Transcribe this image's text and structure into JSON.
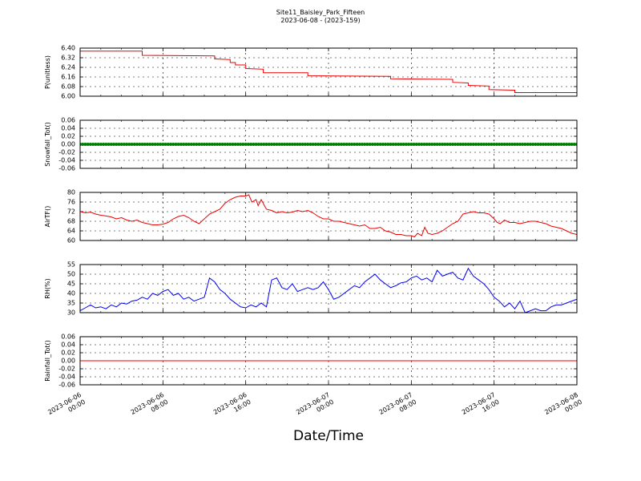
{
  "title": "Site11_Baisley_Park_Fifteen",
  "subtitle": "2023-06-08 - (2023-159)",
  "xlabel": "Date/Time",
  "colors": {
    "red": "#ee0000",
    "green": "#008000",
    "blue": "#0000ee",
    "grid": "#000000"
  },
  "chart_data": [
    {
      "type": "line",
      "ylabel": "P(unitless)",
      "ylim": [
        6.0,
        6.4
      ],
      "yticks": [
        "6.00",
        "6.08",
        "6.16",
        "6.24",
        "6.32",
        "6.40"
      ],
      "xticks": [
        "2023-06-06 00:00",
        "2023-06-06 08:00",
        "2023-06-06 16:00",
        "2023-06-07 00:00",
        "2023-06-07 08:00",
        "2023-06-07 16:00",
        "2023-06-08 00:00"
      ],
      "grid": true,
      "series": [
        {
          "color": "#ee0000",
          "points": [
            [
              0,
              6.375
            ],
            [
              6,
              6.375
            ],
            [
              6,
              6.34
            ],
            [
              13,
              6.335
            ],
            [
              13,
              6.31
            ],
            [
              14.5,
              6.305
            ],
            [
              14.5,
              6.28
            ],
            [
              15,
              6.28
            ],
            [
              15,
              6.26
            ],
            [
              16,
              6.26
            ],
            [
              16,
              6.23
            ],
            [
              17.7,
              6.225
            ],
            [
              17.7,
              6.195
            ],
            [
              22,
              6.195
            ],
            [
              22,
              6.17
            ],
            [
              30,
              6.165
            ],
            [
              30,
              6.145
            ],
            [
              36,
              6.14
            ],
            [
              36,
              6.115
            ],
            [
              37.5,
              6.11
            ],
            [
              37.5,
              6.09
            ],
            [
              39.5,
              6.085
            ],
            [
              39.5,
              6.055
            ],
            [
              42,
              6.05
            ],
            [
              42,
              6.03
            ],
            [
              48,
              6.03
            ]
          ]
        }
      ]
    },
    {
      "type": "scatter",
      "ylabel": "Snowfall_Tot()",
      "ylim": [
        -0.06,
        0.06
      ],
      "yticks": [
        "-0.06",
        "-0.04",
        "-0.02",
        "0.00",
        "0.02",
        "0.04",
        "0.06"
      ],
      "grid": true,
      "series": [
        {
          "color": "#008000",
          "constant": 0.0,
          "x_range": [
            0,
            48
          ],
          "interval_min": 15
        }
      ]
    },
    {
      "type": "line",
      "ylabel": "AirTF()",
      "ylim": [
        60,
        80
      ],
      "yticks": [
        "60",
        "64",
        "68",
        "72",
        "76",
        "80"
      ],
      "grid": true,
      "series": [
        {
          "color": "#ee0000",
          "points": [
            [
              0,
              72
            ],
            [
              0.5,
              71.5
            ],
            [
              1,
              71.8
            ],
            [
              1.5,
              71
            ],
            [
              2,
              70.5
            ],
            [
              2.5,
              70.2
            ],
            [
              3,
              69.8
            ],
            [
              3.5,
              69
            ],
            [
              4,
              69.5
            ],
            [
              4.5,
              68.5
            ],
            [
              5,
              68
            ],
            [
              5.5,
              68.5
            ],
            [
              6,
              67.5
            ],
            [
              6.5,
              67
            ],
            [
              7,
              66.5
            ],
            [
              7.5,
              66.5
            ],
            [
              8,
              66.8
            ],
            [
              8.5,
              67.5
            ],
            [
              9,
              69
            ],
            [
              9.5,
              70
            ],
            [
              10,
              70.5
            ],
            [
              10.5,
              69.5
            ],
            [
              11,
              68
            ],
            [
              11.5,
              67
            ],
            [
              12,
              69
            ],
            [
              12.5,
              71
            ],
            [
              13,
              72
            ],
            [
              13.5,
              73
            ],
            [
              14,
              75.5
            ],
            [
              14.5,
              77
            ],
            [
              15,
              78
            ],
            [
              15.5,
              78.5
            ],
            [
              16,
              78.5
            ],
            [
              16.3,
              79
            ],
            [
              16.6,
              76
            ],
            [
              17,
              77
            ],
            [
              17.2,
              74.5
            ],
            [
              17.5,
              77
            ],
            [
              18,
              73
            ],
            [
              18.5,
              72.5
            ],
            [
              19,
              71.5
            ],
            [
              19.5,
              72
            ],
            [
              20,
              71.5
            ],
            [
              20.5,
              71.8
            ],
            [
              21,
              72.5
            ],
            [
              21.5,
              72
            ],
            [
              22,
              72.5
            ],
            [
              22.5,
              71.5
            ],
            [
              23,
              70
            ],
            [
              23.5,
              69
            ],
            [
              24,
              69
            ],
            [
              24.5,
              68
            ],
            [
              25,
              68
            ],
            [
              25.5,
              67.5
            ],
            [
              26,
              67
            ],
            [
              26.5,
              66.5
            ],
            [
              27,
              66
            ],
            [
              27.5,
              66.5
            ],
            [
              28,
              65
            ],
            [
              28.5,
              65
            ],
            [
              29,
              65.5
            ],
            [
              29.5,
              64
            ],
            [
              30,
              63.5
            ],
            [
              30.5,
              62.5
            ],
            [
              31,
              62.5
            ],
            [
              31.5,
              62
            ],
            [
              32,
              62
            ],
            [
              32.3,
              61.5
            ],
            [
              32.6,
              63
            ],
            [
              33,
              62
            ],
            [
              33.3,
              65.5
            ],
            [
              33.6,
              63
            ],
            [
              34,
              62.5
            ],
            [
              34.5,
              63
            ],
            [
              35,
              64
            ],
            [
              35.5,
              65.5
            ],
            [
              36,
              67
            ],
            [
              36.5,
              68
            ],
            [
              37,
              71
            ],
            [
              37.5,
              71.5
            ],
            [
              38,
              72
            ],
            [
              38.5,
              71.5
            ],
            [
              39,
              71.5
            ],
            [
              39.5,
              71
            ],
            [
              40,
              69
            ],
            [
              40.3,
              67.5
            ],
            [
              40.6,
              67
            ],
            [
              41,
              68.5
            ],
            [
              41.5,
              67.5
            ],
            [
              42,
              67.5
            ],
            [
              42.5,
              67
            ],
            [
              43,
              67.5
            ],
            [
              43.5,
              68
            ],
            [
              44,
              68
            ],
            [
              44.5,
              67.5
            ],
            [
              45,
              67
            ],
            [
              45.5,
              66
            ],
            [
              46,
              65.5
            ],
            [
              46.5,
              65
            ],
            [
              47,
              64
            ],
            [
              47.5,
              63
            ],
            [
              48,
              62.5
            ]
          ]
        }
      ]
    },
    {
      "type": "line",
      "ylabel": "RH(%)",
      "ylim": [
        30,
        55
      ],
      "yticks": [
        "30",
        "35",
        "40",
        "45",
        "50",
        "55"
      ],
      "grid": true,
      "series": [
        {
          "color": "#0000ee",
          "points": [
            [
              0,
              31
            ],
            [
              0.5,
              32.5
            ],
            [
              1,
              34
            ],
            [
              1.5,
              32.5
            ],
            [
              2,
              33
            ],
            [
              2.5,
              32
            ],
            [
              3,
              34
            ],
            [
              3.5,
              33
            ],
            [
              4,
              35
            ],
            [
              4.5,
              34.5
            ],
            [
              5,
              36
            ],
            [
              5.5,
              36.5
            ],
            [
              6,
              38
            ],
            [
              6.5,
              37
            ],
            [
              7,
              40
            ],
            [
              7.5,
              39
            ],
            [
              8,
              41
            ],
            [
              8.5,
              42
            ],
            [
              9,
              39
            ],
            [
              9.5,
              40
            ],
            [
              10,
              37
            ],
            [
              10.5,
              38
            ],
            [
              11,
              36
            ],
            [
              11.5,
              37
            ],
            [
              12,
              38
            ],
            [
              12.5,
              48
            ],
            [
              13,
              46
            ],
            [
              13.5,
              42
            ],
            [
              14,
              40
            ],
            [
              14.5,
              37
            ],
            [
              15,
              35
            ],
            [
              15.5,
              33
            ],
            [
              16,
              32.5
            ],
            [
              16.5,
              34
            ],
            [
              17,
              33
            ],
            [
              17.5,
              35
            ],
            [
              18,
              33
            ],
            [
              18.5,
              47
            ],
            [
              19,
              48
            ],
            [
              19.5,
              43
            ],
            [
              20,
              42
            ],
            [
              20.5,
              45
            ],
            [
              21,
              41
            ],
            [
              21.5,
              42
            ],
            [
              22,
              43
            ],
            [
              22.5,
              42
            ],
            [
              23,
              43
            ],
            [
              23.5,
              46
            ],
            [
              24,
              42
            ],
            [
              24.5,
              37
            ],
            [
              25,
              38
            ],
            [
              25.5,
              40
            ],
            [
              26,
              42
            ],
            [
              26.5,
              44
            ],
            [
              27,
              43
            ],
            [
              27.5,
              46
            ],
            [
              28,
              48
            ],
            [
              28.5,
              50
            ],
            [
              29,
              47
            ],
            [
              29.5,
              45
            ],
            [
              30,
              43
            ],
            [
              30.5,
              44
            ],
            [
              31,
              45.5
            ],
            [
              31.5,
              46
            ],
            [
              32,
              48
            ],
            [
              32.5,
              49
            ],
            [
              33,
              47
            ],
            [
              33.5,
              48
            ],
            [
              34,
              46
            ],
            [
              34.5,
              52
            ],
            [
              35,
              49
            ],
            [
              35.5,
              50
            ],
            [
              36,
              51
            ],
            [
              36.5,
              48
            ],
            [
              37,
              47
            ],
            [
              37.5,
              53
            ],
            [
              38,
              49
            ],
            [
              38.5,
              47
            ],
            [
              39,
              45
            ],
            [
              39.5,
              42
            ],
            [
              40,
              38
            ],
            [
              40.5,
              36
            ],
            [
              41,
              33
            ],
            [
              41.5,
              35
            ],
            [
              42,
              32
            ],
            [
              42.5,
              36
            ],
            [
              43,
              30
            ],
            [
              43.5,
              31
            ],
            [
              44,
              32
            ],
            [
              44.5,
              31
            ],
            [
              45,
              31
            ],
            [
              45.5,
              33
            ],
            [
              46,
              34
            ],
            [
              46.5,
              34
            ],
            [
              47,
              35
            ],
            [
              47.5,
              36
            ],
            [
              48,
              37
            ]
          ]
        }
      ]
    },
    {
      "type": "line",
      "ylabel": "Rainfall_Tot()",
      "ylim": [
        -0.06,
        0.06
      ],
      "yticks": [
        "-0.06",
        "-0.04",
        "-0.02",
        "0.00",
        "0.02",
        "0.04",
        "0.06"
      ],
      "grid": true,
      "series": [
        {
          "color": "#ee0000",
          "points": [
            [
              0,
              0.0
            ],
            [
              48,
              0.0
            ]
          ]
        }
      ]
    }
  ]
}
